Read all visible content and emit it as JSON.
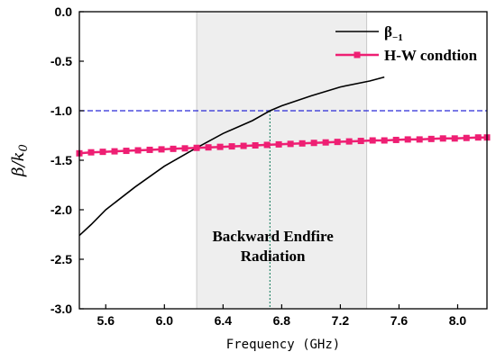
{
  "chart_data": {
    "type": "line",
    "xlabel": "Frequency (GHz)",
    "ylabel": "β/k",
    "ylabel_subscript": "0",
    "xlim": [
      5.42,
      8.2
    ],
    "ylim": [
      -3.0,
      0.0
    ],
    "xticks": [
      5.6,
      6.0,
      6.4,
      6.8,
      7.2,
      7.6,
      8.0
    ],
    "xtick_labels": [
      "5.6",
      "6.0",
      "6.4",
      "6.8",
      "7.2",
      "7.6",
      "8.0"
    ],
    "yticks": [
      0.0,
      -0.5,
      -1.0,
      -1.5,
      -2.0,
      -2.5,
      -3.0
    ],
    "ytick_labels": [
      "0.0",
      "-0.5",
      "-1.0",
      "-1.5",
      "-2.0",
      "-2.5",
      "-3.0"
    ],
    "shaded_region": {
      "x_start": 6.22,
      "x_end": 7.38,
      "color": "#eeeeee"
    },
    "reference_line": {
      "y": -1.0,
      "color": "#2a2ad6",
      "style": "dashed"
    },
    "vertical_marker": {
      "x": 6.72,
      "color": "#2e8b6e",
      "style": "dotted"
    },
    "annotation": {
      "line1": "Backward Endfire",
      "line2": "Radiation",
      "x": 6.74,
      "y1": -2.32,
      "y2": -2.52
    },
    "legend": {
      "placement": "top-right"
    },
    "series": [
      {
        "name": "β",
        "name_subscript": "−1",
        "color": "#000000",
        "marker": "none",
        "x": [
          5.42,
          5.5,
          5.6,
          5.8,
          6.0,
          6.2,
          6.4,
          6.6,
          6.72,
          6.8,
          7.0,
          7.2,
          7.4,
          7.5
        ],
        "y": [
          -2.26,
          -2.15,
          -2.0,
          -1.77,
          -1.56,
          -1.39,
          -1.23,
          -1.1,
          -1.0,
          -0.95,
          -0.85,
          -0.76,
          -0.7,
          -0.66
        ]
      },
      {
        "name": "H-W condtion",
        "color": "#ee1f73",
        "marker": "square",
        "x": [
          5.42,
          5.5,
          5.58,
          5.66,
          5.74,
          5.82,
          5.9,
          5.98,
          6.06,
          6.14,
          6.22,
          6.3,
          6.38,
          6.46,
          6.54,
          6.62,
          6.7,
          6.78,
          6.86,
          6.94,
          7.02,
          7.1,
          7.18,
          7.26,
          7.34,
          7.42,
          7.5,
          7.58,
          7.66,
          7.74,
          7.82,
          7.9,
          7.98,
          8.06,
          8.14,
          8.2
        ],
        "y": [
          -1.43,
          -1.42,
          -1.415,
          -1.41,
          -1.405,
          -1.4,
          -1.395,
          -1.39,
          -1.385,
          -1.38,
          -1.375,
          -1.37,
          -1.365,
          -1.36,
          -1.355,
          -1.35,
          -1.345,
          -1.34,
          -1.335,
          -1.33,
          -1.325,
          -1.32,
          -1.315,
          -1.31,
          -1.305,
          -1.3,
          -1.3,
          -1.295,
          -1.29,
          -1.29,
          -1.285,
          -1.28,
          -1.28,
          -1.275,
          -1.27,
          -1.27
        ]
      }
    ]
  }
}
